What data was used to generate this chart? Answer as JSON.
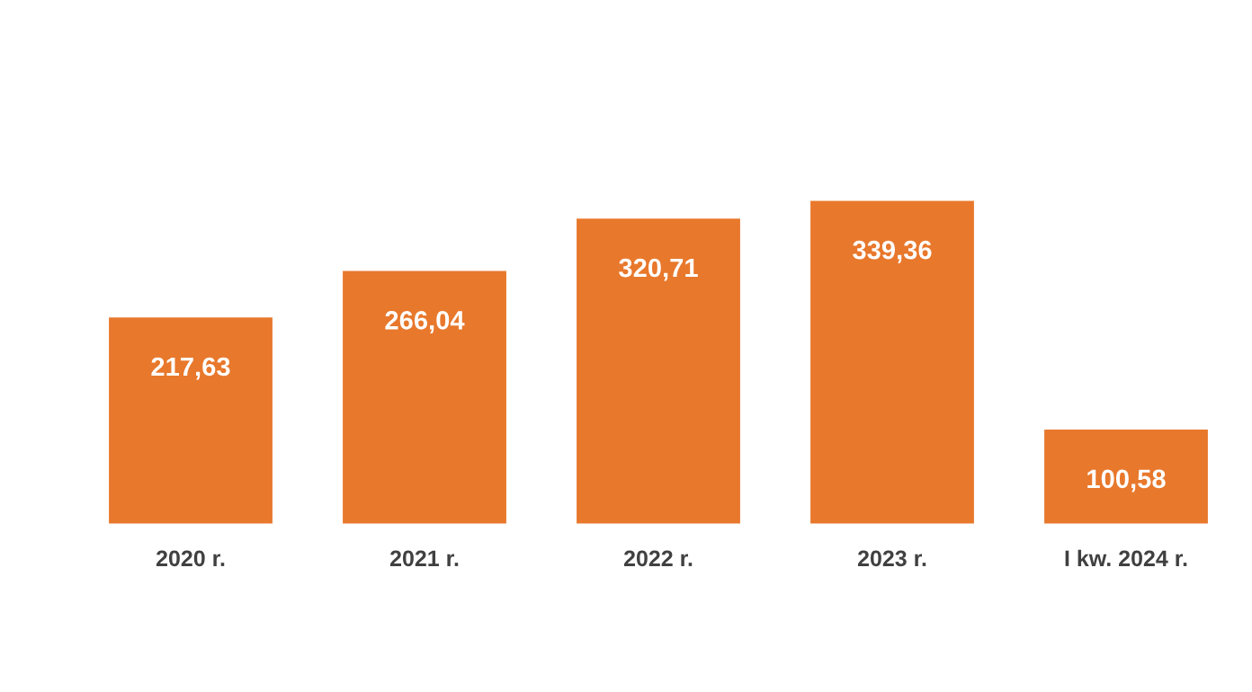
{
  "chart_data": {
    "type": "bar",
    "categories": [
      "2020 r.",
      "2021 r.",
      "2022 r.",
      "2023 r.",
      "I kw. 2024 r."
    ],
    "values": [
      217.63,
      266.04,
      320.71,
      339.36,
      100.58
    ],
    "value_labels": [
      "217,63",
      "266,04",
      "320,71",
      "339,36",
      "100,58"
    ],
    "color": "#e8782c",
    "grid": false,
    "legend": false
  }
}
